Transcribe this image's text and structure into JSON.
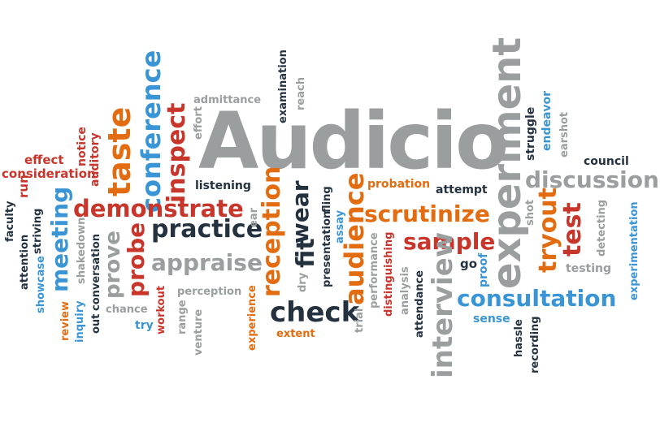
{
  "palette": {
    "gray": "#9a9e9f",
    "red": "#c8352b",
    "orange": "#e36b10",
    "blue": "#3a95d6",
    "navy": "#243240"
  },
  "words": {
    "audicio": "Audicio",
    "experiment": "experiment",
    "interview": "interview",
    "consultation": "consultation",
    "discussion": "discussion",
    "demonstrate": "demonstrate",
    "practice": "practice",
    "appraise": "appraise",
    "check": "check",
    "scrutinize": "scrutinize",
    "sample": "sample",
    "conference": "conference",
    "inspect": "inspect",
    "taste": "taste",
    "meeting": "meeting",
    "probe": "probe",
    "prove": "prove",
    "reception": "reception",
    "audience": "audience",
    "fit": "fit",
    "wear": "wear",
    "test": "test",
    "tryout": "tryout",
    "probation": "probation",
    "attempt": "attempt",
    "admittance": "admittance",
    "examination": "examination",
    "reach": "reach",
    "effort": "effort",
    "listening": "listening",
    "ear": "ear",
    "effect": "effect",
    "consideration": "consideration",
    "notice": "notice",
    "auditory": "auditory",
    "run": "run",
    "faculty": "faculty",
    "striving": "striving",
    "attention": "attention",
    "shakedown": "shakedown",
    "showcase": "showcase",
    "conversation": "conversation",
    "out": "out",
    "review": "review",
    "inquiry": "inquiry",
    "workout": "workout",
    "chance": "chance",
    "try": "try",
    "perception": "perception",
    "range": "range",
    "venture": "venture",
    "experience": "experience",
    "extent": "extent",
    "dry": "dry",
    "presentation": "presentation",
    "fling": "fling",
    "assay": "assay",
    "trial": "trial",
    "performance": "performance",
    "distinguishing": "distinguishing",
    "analysis": "analysis",
    "attendance": "attendance",
    "go": "go",
    "proof": "proof",
    "sense": "sense",
    "hassle": "hassle",
    "recording": "recording",
    "struggle": "struggle",
    "endeavor": "endeavor",
    "earshot": "earshot",
    "council": "council",
    "shot": "shot",
    "detecting": "detecting",
    "testing": "testing",
    "experimentation": "experimentation"
  }
}
